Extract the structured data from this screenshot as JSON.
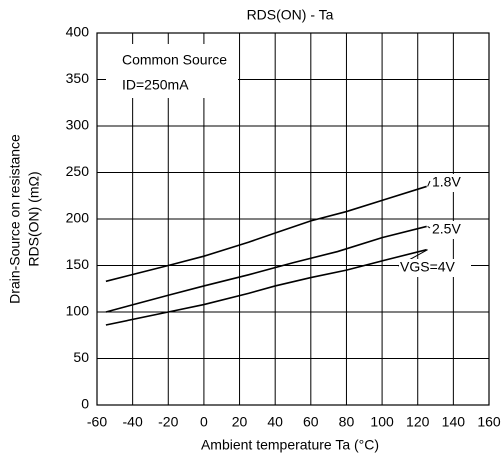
{
  "chart_data": {
    "type": "line",
    "title": "RDS(ON) - Ta",
    "xlabel": "Ambient temperature  Ta (°C)",
    "ylabel": [
      "Drain-Source on resistance",
      "RDS(ON) (mΩ)"
    ],
    "annotations": [
      "Common Source",
      "ID=250mA"
    ],
    "xlim": [
      -60,
      160
    ],
    "xticks": [
      -60,
      -40,
      -20,
      0,
      20,
      40,
      60,
      80,
      100,
      120,
      140,
      160
    ],
    "ylim": [
      0,
      400
    ],
    "yticks": [
      0,
      50,
      100,
      150,
      200,
      250,
      300,
      350,
      400
    ],
    "grid": true,
    "series": [
      {
        "name": "1.8V",
        "color": "#000000",
        "x": [
          -55,
          -20,
          0,
          25,
          40,
          60,
          80,
          100,
          125
        ],
        "values": [
          133,
          150,
          160,
          175,
          185,
          198,
          208,
          220,
          235
        ]
      },
      {
        "name": "2.5V",
        "color": "#000000",
        "x": [
          -55,
          -20,
          0,
          25,
          50,
          75,
          100,
          125
        ],
        "values": [
          100,
          118,
          128,
          140,
          153,
          165,
          180,
          192
        ]
      },
      {
        "name": "VGS=4V",
        "color": "#000000",
        "x": [
          -55,
          -20,
          0,
          25,
          40,
          60,
          80,
          100,
          125
        ],
        "values": [
          86,
          100,
          108,
          120,
          128,
          137,
          145,
          155,
          167
        ]
      }
    ]
  }
}
